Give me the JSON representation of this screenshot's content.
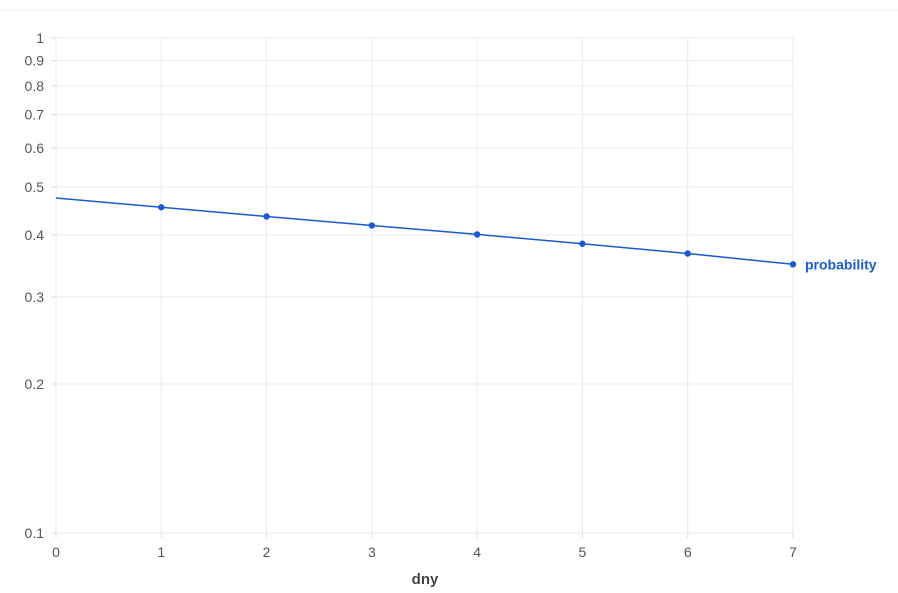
{
  "chart_data": {
    "type": "line",
    "xlabel": "dny",
    "ylabel": "",
    "xlim": [
      0,
      7
    ],
    "ylim": [
      0.1,
      1
    ],
    "yscale": "log",
    "grid": true,
    "x_ticks": [
      "0",
      "1",
      "2",
      "3",
      "4",
      "5",
      "6",
      "7"
    ],
    "y_ticks": [
      "0.1",
      "0.2",
      "0.3",
      "0.4",
      "0.5",
      "0.6",
      "0.7",
      "0.8",
      "0.9",
      "1"
    ],
    "series": [
      {
        "name": "probability",
        "color": "#1a5ad7",
        "x": [
          0,
          1,
          2,
          3,
          4,
          5,
          6,
          7
        ],
        "y": [
          0.475,
          0.455,
          0.436,
          0.418,
          0.401,
          0.384,
          0.367,
          0.349
        ],
        "markers_at": [
          1,
          2,
          3,
          4,
          5,
          6,
          7
        ]
      }
    ]
  }
}
